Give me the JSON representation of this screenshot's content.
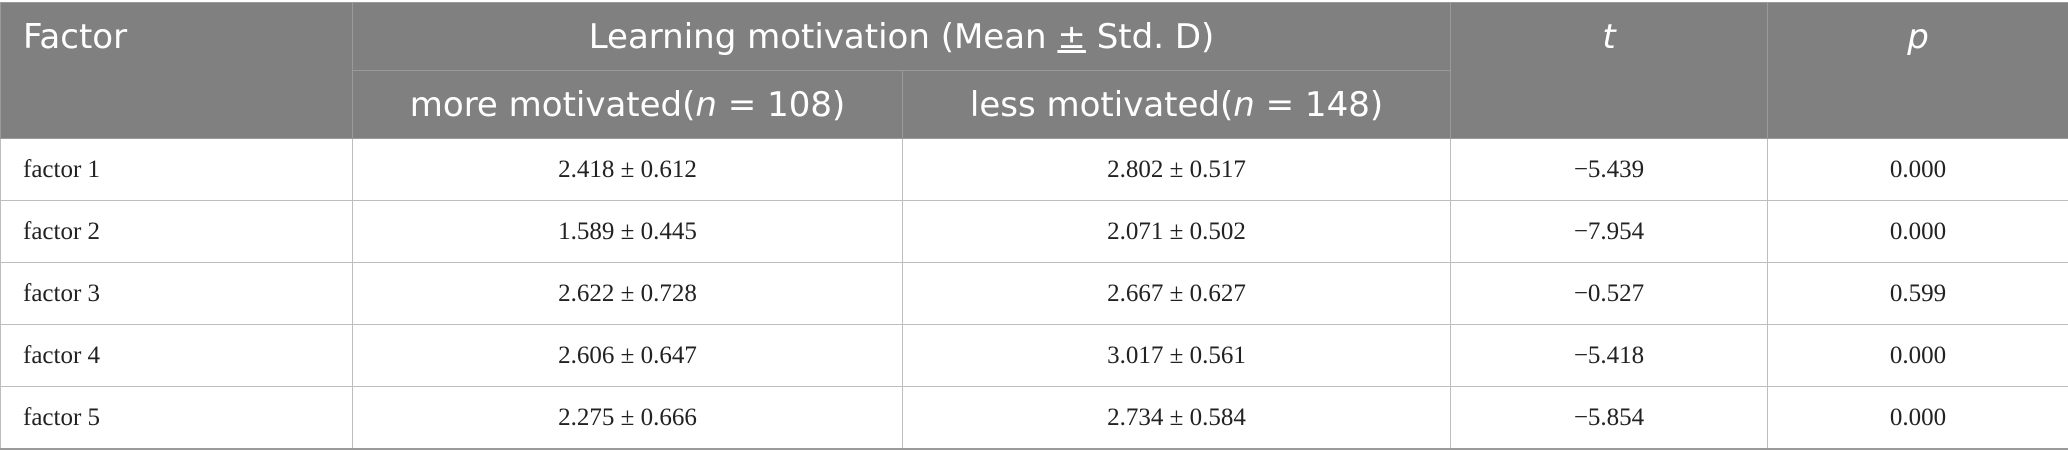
{
  "table": {
    "header": {
      "factor": "Factor",
      "group": "Learning motivation (Mean ",
      "group_pm": "±",
      "group_tail": " Std. D)",
      "t": "t",
      "p": "p",
      "more_prefix": "more motivated(",
      "more_n": "n",
      "more_suffix": " = 108)",
      "less_prefix": "less motivated(",
      "less_n": "n",
      "less_suffix": " = 148)"
    },
    "rows": [
      {
        "factor": "factor 1",
        "more": "2.418 ± 0.612",
        "less": "2.802 ± 0.517",
        "t": "−5.439",
        "p": "0.000"
      },
      {
        "factor": "factor 2",
        "more": "1.589 ± 0.445",
        "less": "2.071 ± 0.502",
        "t": "−7.954",
        "p": "0.000"
      },
      {
        "factor": "factor 3",
        "more": "2.622 ± 0.728",
        "less": "2.667 ± 0.627",
        "t": "−0.527",
        "p": "0.599"
      },
      {
        "factor": "factor 4",
        "more": "2.606 ± 0.647",
        "less": "3.017 ± 0.561",
        "t": "−5.418",
        "p": "0.000"
      },
      {
        "factor": "factor 5",
        "more": "2.275 ± 0.666",
        "less": "2.734 ± 0.584",
        "t": "−5.854",
        "p": "0.000"
      }
    ]
  }
}
